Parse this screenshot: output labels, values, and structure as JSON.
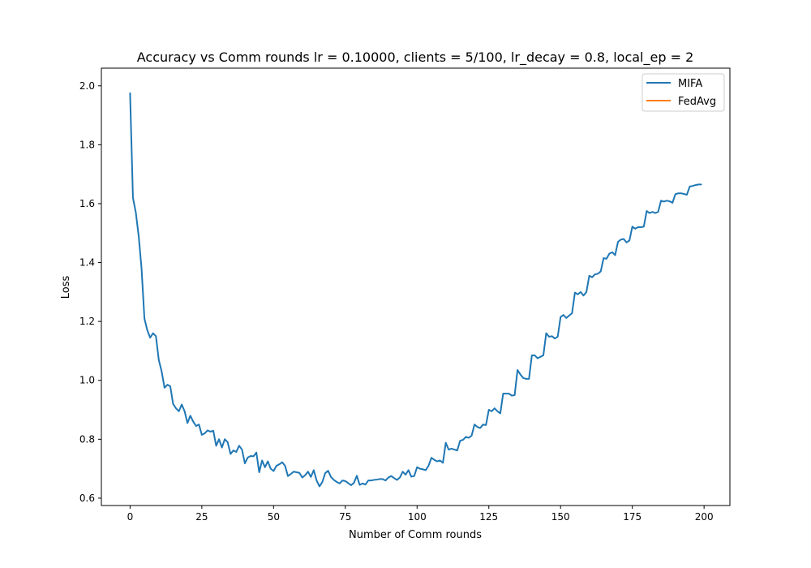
{
  "chart_data": {
    "type": "line",
    "title": "Accuracy vs Comm rounds lr = 0.10000, clients = 5/100, lr_decay = 0.8, local_ep = 2",
    "xlabel": "Number of Comm rounds",
    "ylabel": "Loss",
    "xlim": [
      -10,
      209
    ],
    "ylim": [
      0.575,
      2.06
    ],
    "xticks": [
      0,
      25,
      50,
      75,
      100,
      125,
      150,
      175,
      200
    ],
    "yticks": [
      0.6,
      0.8,
      1.0,
      1.2,
      1.4,
      1.6,
      1.8,
      2.0
    ],
    "xtick_labels": [
      "0",
      "25",
      "50",
      "75",
      "100",
      "125",
      "150",
      "175",
      "200"
    ],
    "ytick_labels": [
      "0.6",
      "0.8",
      "1.0",
      "1.2",
      "1.4",
      "1.6",
      "1.8",
      "2.0"
    ],
    "grid": false,
    "legend_position": "top-right",
    "series": [
      {
        "name": "MIFA",
        "color": "#1f77b4",
        "x": [
          0,
          1,
          2,
          3,
          4,
          5,
          6,
          7,
          8,
          9,
          10,
          11,
          12,
          13,
          14,
          15,
          16,
          17,
          18,
          19,
          20,
          21,
          22,
          23,
          24,
          25,
          26,
          27,
          28,
          29,
          30,
          31,
          32,
          33,
          34,
          35,
          36,
          37,
          38,
          39,
          40,
          41,
          42,
          43,
          44,
          45,
          46,
          47,
          48,
          49,
          50,
          51,
          52,
          53,
          54,
          55,
          56,
          57,
          58,
          59,
          60,
          61,
          62,
          63,
          64,
          65,
          66,
          67,
          68,
          69,
          70,
          71,
          72,
          73,
          74,
          75,
          76,
          77,
          78,
          79,
          80,
          81,
          82,
          83,
          84,
          85,
          86,
          87,
          88,
          89,
          90,
          91,
          92,
          93,
          94,
          95,
          96,
          97,
          98,
          99,
          100,
          101,
          102,
          103,
          104,
          105,
          106,
          107,
          108,
          109,
          110,
          111,
          112,
          113,
          114,
          115,
          116,
          117,
          118,
          119,
          120,
          121,
          122,
          123,
          124,
          125,
          126,
          127,
          128,
          129,
          130,
          131,
          132,
          133,
          134,
          135,
          136,
          137,
          138,
          139,
          140,
          141,
          142,
          143,
          144,
          145,
          146,
          147,
          148,
          149,
          150,
          151,
          152,
          153,
          154,
          155,
          156,
          157,
          158,
          159,
          160,
          161,
          162,
          163,
          164,
          165,
          166,
          167,
          168,
          169,
          170,
          171,
          172,
          173,
          174,
          175,
          176,
          177,
          178,
          179,
          180,
          181,
          182,
          183,
          184,
          185,
          186,
          187,
          188,
          189,
          190,
          191,
          192,
          193,
          194,
          195,
          196,
          197,
          198,
          199
        ],
        "y": [
          1.975,
          1.62,
          1.57,
          1.49,
          1.38,
          1.21,
          1.17,
          1.145,
          1.16,
          1.15,
          1.07,
          1.03,
          0.975,
          0.985,
          0.98,
          0.92,
          0.905,
          0.895,
          0.918,
          0.895,
          0.855,
          0.88,
          0.86,
          0.845,
          0.85,
          0.815,
          0.82,
          0.83,
          0.826,
          0.829,
          0.778,
          0.8,
          0.772,
          0.8,
          0.79,
          0.75,
          0.762,
          0.757,
          0.778,
          0.765,
          0.718,
          0.738,
          0.743,
          0.742,
          0.755,
          0.688,
          0.728,
          0.705,
          0.725,
          0.7,
          0.692,
          0.71,
          0.715,
          0.722,
          0.71,
          0.675,
          0.682,
          0.69,
          0.688,
          0.686,
          0.67,
          0.678,
          0.69,
          0.672,
          0.695,
          0.66,
          0.64,
          0.655,
          0.685,
          0.693,
          0.672,
          0.662,
          0.655,
          0.65,
          0.66,
          0.658,
          0.651,
          0.644,
          0.652,
          0.676,
          0.645,
          0.65,
          0.646,
          0.66,
          0.66,
          0.662,
          0.663,
          0.665,
          0.665,
          0.66,
          0.67,
          0.675,
          0.668,
          0.662,
          0.67,
          0.69,
          0.68,
          0.695,
          0.673,
          0.675,
          0.705,
          0.7,
          0.698,
          0.695,
          0.71,
          0.737,
          0.73,
          0.725,
          0.728,
          0.72,
          0.788,
          0.765,
          0.768,
          0.765,
          0.762,
          0.795,
          0.798,
          0.808,
          0.805,
          0.812,
          0.85,
          0.842,
          0.838,
          0.85,
          0.848,
          0.9,
          0.895,
          0.905,
          0.895,
          0.888,
          0.955,
          0.955,
          0.955,
          0.948,
          0.95,
          1.035,
          1.02,
          1.008,
          1.005,
          1.005,
          1.085,
          1.085,
          1.075,
          1.08,
          1.085,
          1.16,
          1.148,
          1.15,
          1.142,
          1.148,
          1.215,
          1.222,
          1.212,
          1.22,
          1.228,
          1.298,
          1.292,
          1.3,
          1.288,
          1.3,
          1.355,
          1.35,
          1.36,
          1.362,
          1.37,
          1.415,
          1.413,
          1.43,
          1.435,
          1.425,
          1.47,
          1.478,
          1.48,
          1.468,
          1.475,
          1.522,
          1.515,
          1.52,
          1.52,
          1.522,
          1.575,
          1.568,
          1.572,
          1.568,
          1.572,
          1.61,
          1.607,
          1.61,
          1.608,
          1.603,
          1.632,
          1.635,
          1.635,
          1.633,
          1.63,
          1.658,
          1.66,
          1.663,
          1.665,
          1.665
        ]
      },
      {
        "name": "FedAvg",
        "color": "#ff7f0e",
        "x": [],
        "y": []
      }
    ]
  }
}
